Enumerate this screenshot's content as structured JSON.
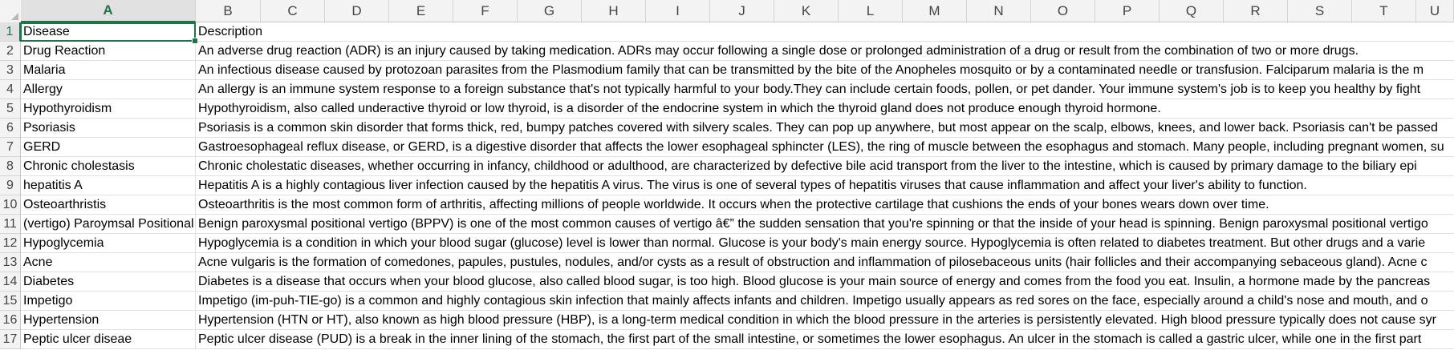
{
  "columns": [
    "A",
    "B",
    "C",
    "D",
    "E",
    "F",
    "G",
    "H",
    "I",
    "J",
    "K",
    "L",
    "M",
    "N",
    "O",
    "P",
    "Q",
    "R",
    "S",
    "T",
    "U"
  ],
  "active_column": "A",
  "active_row": "1",
  "rows": [
    {
      "num": "1",
      "a": "Disease",
      "b": "Description"
    },
    {
      "num": "2",
      "a": "Drug Reaction",
      "b": "An adverse drug reaction (ADR) is an injury caused by taking medication. ADRs may occur following a single dose or prolonged administration of a drug or result from the combination of two or more drugs."
    },
    {
      "num": "3",
      "a": "Malaria",
      "b": "An infectious disease caused by protozoan parasites from the Plasmodium family that can be transmitted by the bite of the Anopheles mosquito or by a contaminated needle or transfusion. Falciparum malaria is the m"
    },
    {
      "num": "4",
      "a": "Allergy",
      "b": "An allergy is an immune system response to a foreign substance that's not typically harmful to your body.They can include certain foods, pollen, or pet dander. Your immune system's job is to keep you healthy by fight"
    },
    {
      "num": "5",
      "a": "Hypothyroidism",
      "b": "Hypothyroidism, also called underactive thyroid or low thyroid, is a disorder of the endocrine system in which the thyroid gland does not produce enough thyroid hormone."
    },
    {
      "num": "6",
      "a": "Psoriasis",
      "b": "Psoriasis is a common skin disorder that forms thick, red, bumpy patches covered with silvery scales. They can pop up anywhere, but most appear on the scalp, elbows, knees, and lower back. Psoriasis can't be passed"
    },
    {
      "num": "7",
      "a": "GERD",
      "b": "Gastroesophageal reflux disease, or GERD, is a digestive disorder that affects the lower esophageal sphincter (LES), the ring of muscle between the esophagus and stomach. Many people, including pregnant women, su"
    },
    {
      "num": "8",
      "a": "Chronic cholestasis",
      "b": "Chronic cholestatic diseases, whether occurring in infancy, childhood or adulthood, are characterized by defective bile acid transport from the liver to the intestine, which is caused by primary damage to the biliary epi"
    },
    {
      "num": "9",
      "a": "hepatitis A",
      "b": "Hepatitis A is a highly contagious liver infection caused by the hepatitis A virus. The virus is one of several types of hepatitis viruses that cause inflammation and affect your liver's ability to function."
    },
    {
      "num": "10",
      "a": "Osteoarthristis",
      "b": "Osteoarthritis is the most common form of arthritis, affecting millions of people worldwide. It occurs when the protective cartilage that cushions the ends of your bones wears down over time."
    },
    {
      "num": "11",
      "a": "(vertigo) Paroymsal  Positional",
      "b": "Benign paroxysmal positional vertigo (BPPV) is one of the most common causes of vertigo â€” the sudden sensation that you're spinning or that the inside of your head is spinning. Benign paroxysmal positional vertigo"
    },
    {
      "num": "12",
      "a": "Hypoglycemia",
      "b": " Hypoglycemia is a condition in which your blood sugar (glucose) level is lower than normal. Glucose is your body's main energy source. Hypoglycemia is often related to diabetes treatment. But other drugs and a varie"
    },
    {
      "num": "13",
      "a": "Acne",
      "b": "Acne vulgaris is the formation of comedones, papules, pustules, nodules, and/or cysts as a result of obstruction and inflammation of pilosebaceous units (hair follicles and their accompanying sebaceous gland). Acne c"
    },
    {
      "num": "14",
      "a": "Diabetes",
      "b": "Diabetes is a disease that occurs when your blood glucose, also called blood sugar, is too high. Blood glucose is your main source of energy and comes from the food you eat. Insulin, a hormone made by the pancreas"
    },
    {
      "num": "15",
      "a": "Impetigo",
      "b": "Impetigo (im-puh-TIE-go) is a common and highly contagious skin infection that mainly affects infants and children. Impetigo usually appears as red sores on the face, especially around a child's nose and mouth, and o"
    },
    {
      "num": "16",
      "a": "Hypertension",
      "b": "Hypertension (HTN or HT), also known as high blood pressure (HBP), is a long-term medical condition in which the blood pressure in the arteries is persistently elevated. High blood pressure typically does not cause syr"
    },
    {
      "num": "17",
      "a": "Peptic ulcer diseae",
      "b": "Peptic ulcer disease (PUD) is a break in the inner lining of the stomach, the first part of the small intestine, or sometimes the lower esophagus. An ulcer in the stomach is called a gastric ulcer, while one in the first part"
    }
  ]
}
